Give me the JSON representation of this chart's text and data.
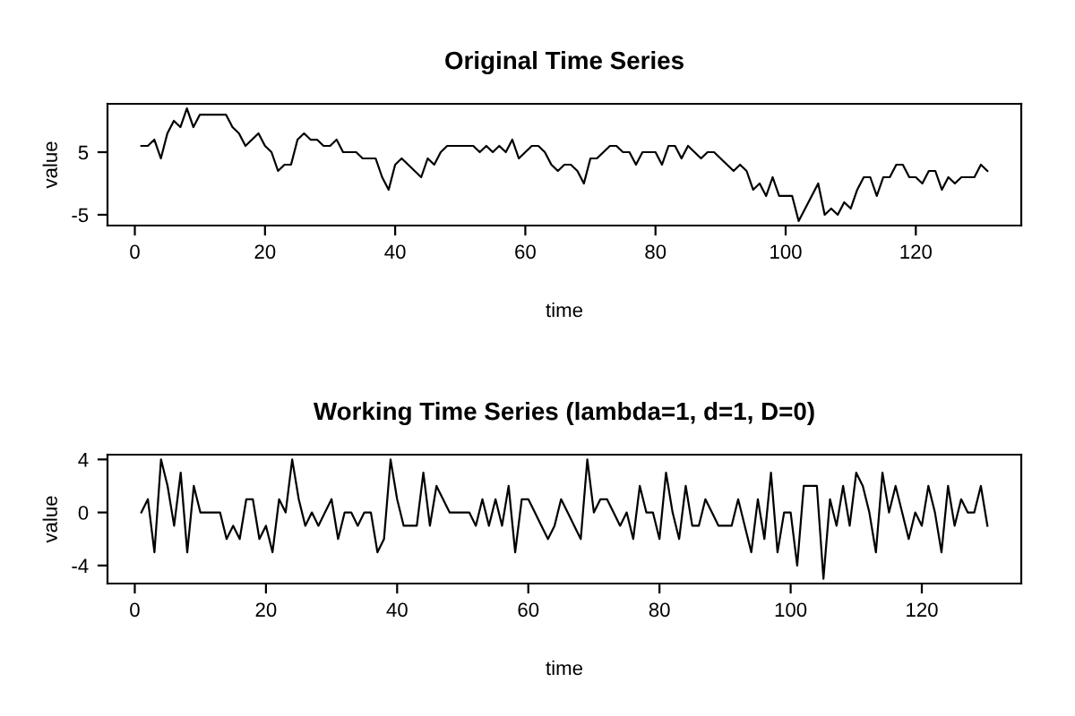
{
  "chart_data": [
    {
      "type": "line",
      "title": "Original Time Series",
      "xlabel": "time",
      "ylabel": "value",
      "x": [
        1,
        2,
        3,
        4,
        5,
        6,
        7,
        8,
        9,
        10,
        11,
        12,
        13,
        14,
        15,
        16,
        17,
        18,
        19,
        20,
        21,
        22,
        23,
        24,
        25,
        26,
        27,
        28,
        29,
        30,
        31,
        32,
        33,
        34,
        35,
        36,
        37,
        38,
        39,
        40,
        41,
        42,
        43,
        44,
        45,
        46,
        47,
        48,
        49,
        50,
        51,
        52,
        53,
        54,
        55,
        56,
        57,
        58,
        59,
        60,
        61,
        62,
        63,
        64,
        65,
        66,
        67,
        68,
        69,
        70,
        71,
        72,
        73,
        74,
        75,
        76,
        77,
        78,
        79,
        80,
        81,
        82,
        83,
        84,
        85,
        86,
        87,
        88,
        89,
        90,
        91,
        92,
        93,
        94,
        95,
        96,
        97,
        98,
        99,
        100,
        101,
        102,
        103,
        104,
        105,
        106,
        107,
        108,
        109,
        110,
        111,
        112,
        113,
        114,
        115,
        116,
        117,
        118,
        119,
        120,
        121,
        122,
        123,
        124,
        125,
        126,
        127,
        128,
        129,
        130,
        131
      ],
      "xlim": [
        -4.2,
        136.2
      ],
      "xticks": [
        0,
        20,
        40,
        60,
        80,
        100,
        120
      ],
      "ylim": [
        -6.72,
        12.72
      ],
      "yticks": [
        -5,
        5
      ],
      "grid": false,
      "color": "#000000",
      "values": [
        6,
        6,
        7,
        4,
        8,
        10,
        9,
        12,
        9,
        11,
        11,
        11,
        11,
        11,
        9,
        8,
        6,
        7,
        8,
        6,
        5,
        2,
        3,
        3,
        7,
        8,
        7,
        7,
        6,
        6,
        7,
        5,
        5,
        5,
        4,
        4,
        4,
        1,
        -1,
        3,
        4,
        3,
        2,
        1,
        4,
        3,
        5,
        6,
        6,
        6,
        6,
        6,
        5,
        6,
        5,
        6,
        5,
        7,
        4,
        5,
        6,
        6,
        5,
        3,
        2,
        3,
        3,
        2,
        0,
        4,
        4,
        5,
        6,
        6,
        5,
        5,
        3,
        5,
        5,
        5,
        3,
        6,
        6,
        4,
        6,
        5,
        4,
        5,
        5,
        4,
        3,
        2,
        3,
        2,
        -1,
        0,
        -2,
        1,
        -2,
        -2,
        -2,
        -6,
        -4,
        -2,
        0,
        -5,
        -4,
        -5,
        -3,
        -4,
        -1,
        1,
        1,
        -2,
        1,
        1,
        3,
        3,
        1,
        1,
        0,
        2,
        2,
        -1,
        1,
        0,
        1,
        1,
        1,
        3,
        2
      ]
    },
    {
      "type": "line",
      "title": "Working Time Series (lambda=1, d=1, D=0)",
      "xlabel": "time",
      "ylabel": "value",
      "x": [
        1,
        2,
        3,
        4,
        5,
        6,
        7,
        8,
        9,
        10,
        11,
        12,
        13,
        14,
        15,
        16,
        17,
        18,
        19,
        20,
        21,
        22,
        23,
        24,
        25,
        26,
        27,
        28,
        29,
        30,
        31,
        32,
        33,
        34,
        35,
        36,
        37,
        38,
        39,
        40,
        41,
        42,
        43,
        44,
        45,
        46,
        47,
        48,
        49,
        50,
        51,
        52,
        53,
        54,
        55,
        56,
        57,
        58,
        59,
        60,
        61,
        62,
        63,
        64,
        65,
        66,
        67,
        68,
        69,
        70,
        71,
        72,
        73,
        74,
        75,
        76,
        77,
        78,
        79,
        80,
        81,
        82,
        83,
        84,
        85,
        86,
        87,
        88,
        89,
        90,
        91,
        92,
        93,
        94,
        95,
        96,
        97,
        98,
        99,
        100,
        101,
        102,
        103,
        104,
        105,
        106,
        107,
        108,
        109,
        110,
        111,
        112,
        113,
        114,
        115,
        116,
        117,
        118,
        119,
        120,
        121,
        122,
        123,
        124,
        125,
        126,
        127,
        128,
        129,
        130
      ],
      "xlim": [
        -4.16,
        135.16
      ],
      "xticks": [
        0,
        20,
        40,
        60,
        80,
        100,
        120
      ],
      "ylim": [
        -5.36,
        4.36
      ],
      "yticks": [
        -4,
        0,
        4
      ],
      "grid": false,
      "color": "#000000",
      "values": [
        0,
        1,
        -3,
        4,
        2,
        -1,
        3,
        -3,
        2,
        0,
        0,
        0,
        0,
        -2,
        -1,
        -2,
        1,
        1,
        -2,
        -1,
        -3,
        1,
        0,
        4,
        1,
        -1,
        0,
        -1,
        0,
        1,
        -2,
        0,
        0,
        -1,
        0,
        0,
        -3,
        -2,
        4,
        1,
        -1,
        -1,
        -1,
        3,
        -1,
        2,
        1,
        0,
        0,
        0,
        0,
        -1,
        1,
        -1,
        1,
        -1,
        2,
        -3,
        1,
        1,
        0,
        -1,
        -2,
        -1,
        1,
        0,
        -1,
        -2,
        4,
        0,
        1,
        1,
        0,
        -1,
        0,
        -2,
        2,
        0,
        0,
        -2,
        3,
        0,
        -2,
        2,
        -1,
        -1,
        1,
        0,
        -1,
        -1,
        -1,
        1,
        -1,
        -3,
        1,
        -2,
        3,
        -3,
        0,
        0,
        -4,
        2,
        2,
        2,
        -5,
        1,
        -1,
        2,
        -1,
        3,
        2,
        0,
        -3,
        3,
        0,
        2,
        0,
        -2,
        0,
        -1,
        2,
        0,
        -3,
        2,
        -1,
        1,
        0,
        0,
        2,
        -1
      ]
    }
  ]
}
